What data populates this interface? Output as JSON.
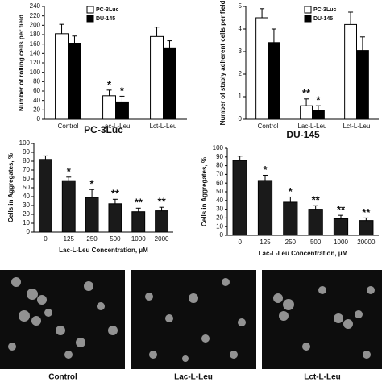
{
  "chart_data": [
    {
      "type": "bar",
      "y_label": "Number of rolling cells per field",
      "categories": [
        "Control",
        "Lac-L-Leu",
        "Lct-L-Leu"
      ],
      "series": [
        {
          "name": "PC-3Luc",
          "color": "#ffffff",
          "values": [
            182,
            50,
            176
          ],
          "errors": [
            20,
            12,
            20
          ],
          "significance": [
            null,
            "*",
            null
          ]
        },
        {
          "name": "DU-145",
          "color": "#000000",
          "values": [
            162,
            37,
            152
          ],
          "errors": [
            15,
            12,
            15
          ],
          "significance": [
            null,
            "*",
            null
          ]
        }
      ],
      "ylim": [
        0,
        240
      ],
      "yticks": [
        0,
        20,
        40,
        60,
        80,
        100,
        120,
        140,
        160,
        180,
        200,
        220,
        240
      ],
      "legend": "top"
    },
    {
      "type": "bar",
      "y_label": "Number of stably adherent cells per field",
      "categories": [
        "Control",
        "Lac-L-Leu",
        "Lct-L-Leu"
      ],
      "series": [
        {
          "name": "PC-3Luc",
          "color": "#ffffff",
          "values": [
            4.5,
            0.6,
            4.2
          ],
          "errors": [
            0.4,
            0.3,
            0.55
          ],
          "significance": [
            null,
            "**",
            null
          ]
        },
        {
          "name": "DU-145",
          "color": "#000000",
          "values": [
            3.4,
            0.4,
            3.05
          ],
          "errors": [
            0.6,
            0.2,
            0.6
          ],
          "significance": [
            null,
            "*",
            null
          ]
        }
      ],
      "ylim": [
        0,
        5
      ],
      "yticks": [
        0,
        1,
        2,
        3,
        4,
        5
      ],
      "legend": "top"
    },
    {
      "type": "bar",
      "title": "PC-3Luc",
      "y_label": "Cells in Aggregates, %",
      "x_label": "Lac-L-Leu Concentration, μM",
      "categories": [
        "0",
        "125",
        "250",
        "500",
        "1000",
        "2000"
      ],
      "color": "#1a1a1a",
      "values": [
        82,
        58,
        39,
        32,
        23,
        24
      ],
      "errors": [
        4,
        4,
        9,
        5,
        4,
        4
      ],
      "significance": [
        null,
        "*",
        "*",
        "**",
        "**",
        "**"
      ],
      "ylim": [
        0,
        100
      ],
      "yticks": [
        0,
        10,
        20,
        30,
        40,
        50,
        60,
        70,
        80,
        90,
        100
      ]
    },
    {
      "type": "bar",
      "title": "DU-145",
      "y_label": "Cells in Aggregates, %",
      "x_label": "Lac-L-Leu Concentration, μM",
      "categories": [
        "0",
        "125",
        "250",
        "500",
        "1000",
        "20000"
      ],
      "color": "#1a1a1a",
      "values": [
        86,
        63,
        38,
        30,
        19,
        17
      ],
      "errors": [
        5,
        6,
        6,
        4,
        4,
        3
      ],
      "significance": [
        null,
        "*",
        "*",
        "**",
        "**",
        "**"
      ],
      "ylim": [
        0,
        100
      ],
      "yticks": [
        0,
        10,
        20,
        30,
        40,
        50,
        60,
        70,
        80,
        90,
        100
      ]
    }
  ],
  "image_panel": {
    "labels": [
      "Control",
      "Lac-L-Leu",
      "Lct-L-Leu"
    ]
  }
}
